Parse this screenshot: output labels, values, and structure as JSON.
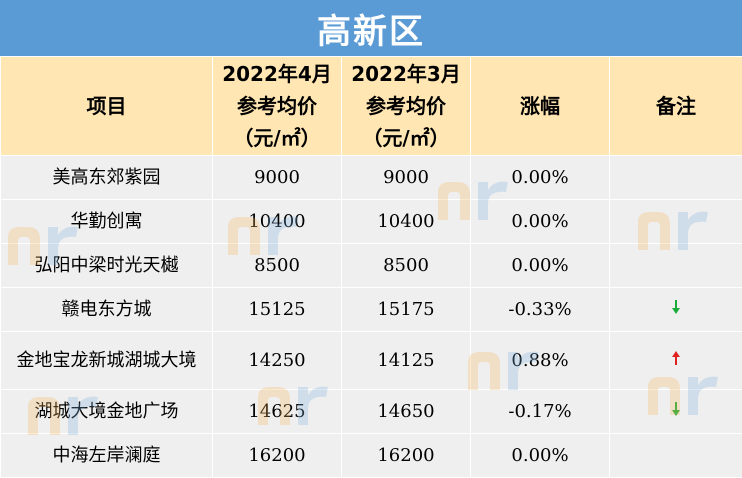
{
  "title": "高新区",
  "header": {
    "col_project": "项目",
    "col_april_l1": "2022年4月",
    "col_april_l2": "参考均价",
    "col_april_l3": "（元/㎡）",
    "col_march_l1": "2022年3月",
    "col_march_l2": "参考均价",
    "col_march_l3": "（元/㎡）",
    "col_change": "涨幅",
    "col_note": "备注"
  },
  "rows": [
    {
      "name": "美高东郊紫园",
      "april": "9000",
      "march": "9000",
      "change": "0.00%",
      "note": ""
    },
    {
      "name": "华勤创寓",
      "april": "10400",
      "march": "10400",
      "change": "0.00%",
      "note": ""
    },
    {
      "name": "弘阳中梁时光天樾",
      "april": "8500",
      "march": "8500",
      "change": "0.00%",
      "note": ""
    },
    {
      "name": "赣电东方城",
      "april": "15125",
      "march": "15175",
      "change": "-0.33%",
      "note": "down"
    },
    {
      "name": "金地宝龙新城湖城大境",
      "april": "14250",
      "march": "14125",
      "change": "0.88%",
      "note": "up"
    },
    {
      "name": "湖城大境金地广场",
      "april": "14625",
      "march": "14650",
      "change": "-0.17%",
      "note": "down"
    },
    {
      "name": "中海左岸澜庭",
      "april": "16200",
      "march": "16200",
      "change": "0.00%",
      "note": ""
    }
  ],
  "colors": {
    "title_bg": "#5b9bd5",
    "header_bg": "#ffe6b3",
    "row_bg": "#efefef",
    "up_arrow": "#e02020",
    "down_arrow": "#1aaa3a"
  },
  "icons": {
    "up": "arrow-up-icon",
    "down": "arrow-down-icon"
  }
}
